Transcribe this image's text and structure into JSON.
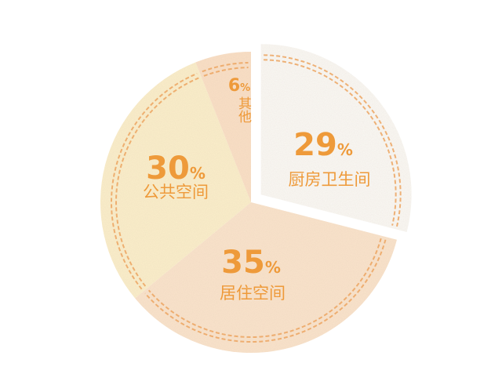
{
  "chart_data": {
    "type": "pie",
    "categories": [
      "厨房卫生间",
      "居住空间",
      "公共空间",
      "其他"
    ],
    "values": [
      29,
      35,
      30,
      6
    ],
    "labels": [
      {
        "value": "29",
        "unit": "%",
        "name": "厨房卫生间"
      },
      {
        "value": "35",
        "unit": "%",
        "name": "居住空间"
      },
      {
        "value": "30",
        "unit": "%",
        "name": "公共空间"
      },
      {
        "value": "6",
        "unit": "%",
        "name": "其他"
      }
    ],
    "colors": [
      "#fbf9f5",
      "#fbe4cc",
      "#fcefcb",
      "#fbe0c6"
    ],
    "stitch_color": "#eca560",
    "text_color": "#ee9a3a",
    "exploded_slice": "厨房卫生间",
    "legend": "none",
    "grid": false
  }
}
